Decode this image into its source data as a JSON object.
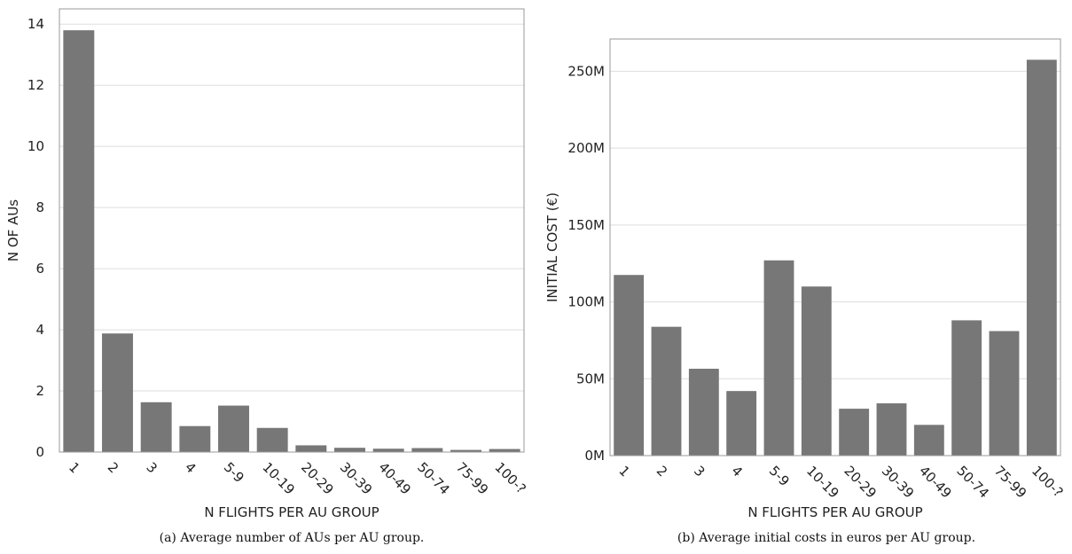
{
  "chart_data": [
    {
      "type": "bar",
      "categories": [
        "1",
        "2",
        "3",
        "4",
        "5-9",
        "10-19",
        "20-29",
        "30-39",
        "40-49",
        "50-74",
        "75-99",
        "100-?"
      ],
      "values": [
        13.8,
        3.88,
        1.63,
        0.85,
        1.52,
        0.79,
        0.22,
        0.14,
        0.11,
        0.13,
        0.07,
        0.1
      ],
      "xlabel": "N FLIGHTS PER AU GROUP",
      "ylabel": "N OF AUs",
      "ylim": [
        0,
        14.5
      ],
      "yticks": [
        0,
        2,
        4,
        6,
        8,
        10,
        12,
        14
      ],
      "ytick_labels": [
        "0",
        "2",
        "4",
        "6",
        "8",
        "10",
        "12",
        "14"
      ],
      "grid": true,
      "bar_color": "#777777",
      "caption": "(a) Average number of AUs per AU group."
    },
    {
      "type": "bar",
      "categories": [
        "1",
        "2",
        "3",
        "4",
        "5-9",
        "10-19",
        "20-29",
        "30-39",
        "40-49",
        "50-74",
        "75-99",
        "100-?"
      ],
      "values": [
        117.5,
        83.8,
        56.5,
        42.0,
        127.0,
        110.0,
        30.5,
        34.0,
        20.0,
        88.0,
        81.0,
        257.5
      ],
      "xlabel": "N FLIGHTS PER AU GROUP",
      "ylabel": "INITIAL COST (€)",
      "ylim": [
        0,
        271
      ],
      "yticks": [
        0,
        50,
        100,
        150,
        200,
        250
      ],
      "ytick_labels": [
        "0M",
        "50M",
        "100M",
        "150M",
        "200M",
        "250M"
      ],
      "grid": true,
      "bar_color": "#777777",
      "caption": "(b) Average initial costs in euros per AU group."
    }
  ]
}
